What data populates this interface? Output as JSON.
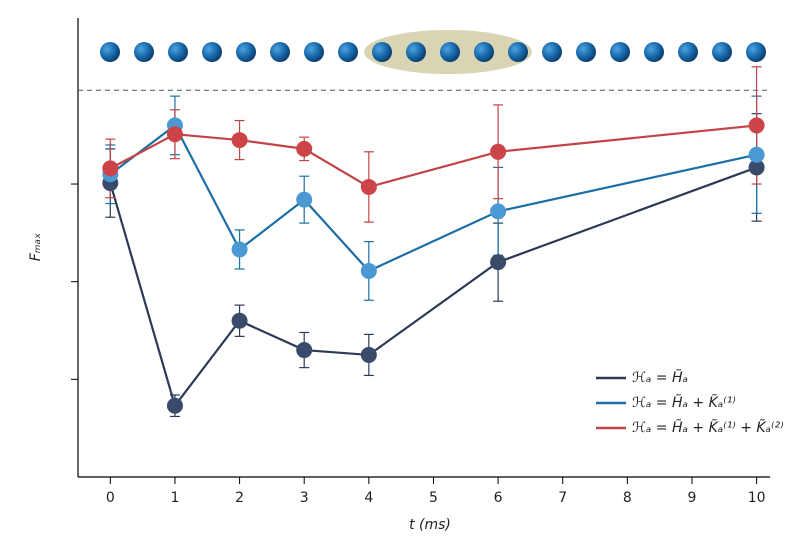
{
  "chart_data": {
    "type": "line",
    "xlabel": "t (ms)",
    "ylabel": "Fₘₐₓ",
    "xlim": [
      -0.5,
      10.3
    ],
    "xticks": [
      0,
      1,
      2,
      3,
      4,
      5,
      6,
      7,
      8,
      9,
      10
    ],
    "ylim": [
      0,
      4.7
    ],
    "yticks": [
      1,
      2,
      3
    ],
    "ytick_labels": false,
    "reference_line": 3.96,
    "legend": "lower right",
    "series": [
      {
        "name": "ℋₐ = H̃ₐ",
        "color": "#2b3a57",
        "marker_color": "#3a4a6a",
        "x": [
          0,
          1,
          2,
          3,
          4,
          6,
          10
        ],
        "values": [
          3.01,
          0.73,
          1.6,
          1.3,
          1.25,
          2.2,
          3.17
        ],
        "errors": [
          0.35,
          0.11,
          0.16,
          0.18,
          0.21,
          0.4,
          0.55
        ]
      },
      {
        "name": "ℋₐ = H̃ₐ + K̃ₐ⁽¹⁾",
        "color": "#1b6ea6",
        "marker_color": "#4a98d4",
        "x": [
          0,
          1,
          2,
          3,
          4,
          6,
          10
        ],
        "values": [
          3.1,
          3.6,
          2.33,
          2.84,
          2.11,
          2.72,
          3.3
        ],
        "errors": [
          0.3,
          0.3,
          0.2,
          0.24,
          0.3,
          0.45,
          0.6
        ]
      },
      {
        "name": "ℋₐ = H̃ₐ + K̃ₐ⁽¹⁾ + K̃ₐ⁽²⁾",
        "color": "#c24447",
        "marker_color": "#cc4448",
        "x": [
          0,
          1,
          2,
          3,
          4,
          6,
          10
        ],
        "values": [
          3.16,
          3.51,
          3.45,
          3.36,
          2.97,
          3.33,
          3.6
        ],
        "errors": [
          0.3,
          0.25,
          0.2,
          0.12,
          0.36,
          0.48,
          0.6
        ]
      }
    ]
  }
}
